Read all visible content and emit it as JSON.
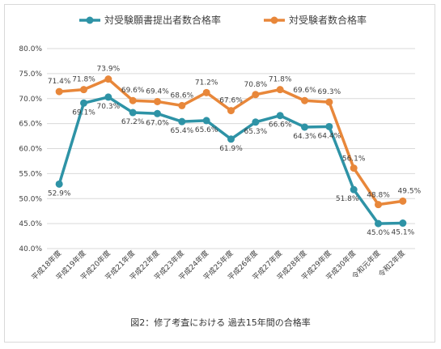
{
  "chart_data": {
    "type": "line",
    "title": "",
    "caption": "図2：修了考査における 過去15年間の合格率",
    "categories": [
      "平成18年度",
      "平成19年度",
      "平成20年度",
      "平成21年度",
      "平成22年度",
      "平成23年度",
      "平成24年度",
      "平成25年度",
      "平成26年度",
      "平成27年度",
      "平成28年度",
      "平成29年度",
      "平成30年度",
      "令和元年度",
      "令和2年度"
    ],
    "series": [
      {
        "name": "対受験願書提出者数合格率",
        "color": "#2e93a6",
        "values": [
          52.9,
          69.1,
          70.3,
          67.2,
          67.0,
          65.4,
          65.6,
          61.9,
          65.3,
          66.6,
          64.3,
          64.4,
          51.8,
          45.0,
          45.1
        ],
        "labels": [
          "52.9%",
          "69.1%",
          "70.3%",
          "67.2%",
          "67.0%",
          "65.4%",
          "65.6%",
          "61.9%",
          "65.3%",
          "66.6%",
          "64.3%",
          "64.4%",
          "51.8%",
          "45.0%",
          "45.1%"
        ]
      },
      {
        "name": "対受験者数合格率",
        "color": "#e8873a",
        "values": [
          71.4,
          71.8,
          73.9,
          69.6,
          69.4,
          68.6,
          71.2,
          67.6,
          70.8,
          71.8,
          69.6,
          69.3,
          56.1,
          48.8,
          49.5
        ],
        "labels": [
          "71.4%",
          "71.8%",
          "73.9%",
          "69.6%",
          "69.4%",
          "68.6%",
          "71.2%",
          "67.6%",
          "70.8%",
          "71.8%",
          "69.6%",
          "69.3%",
          "56.1%",
          "48.8%",
          "49.5%"
        ]
      }
    ],
    "yticks": [
      "40.0%",
      "45.0%",
      "50.0%",
      "55.0%",
      "60.0%",
      "65.0%",
      "70.0%",
      "75.0%",
      "80.0%"
    ],
    "ylim": [
      40,
      80
    ],
    "grid": true,
    "legend_position": "top-center"
  }
}
